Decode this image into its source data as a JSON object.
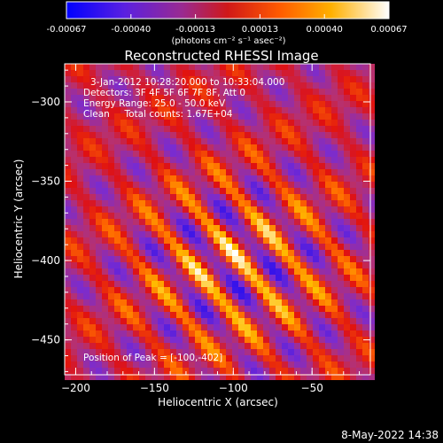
{
  "chart_data": {
    "type": "heatmap",
    "title": "Reconstructed RHESSI Image",
    "xlabel": "Heliocentric X (arcsec)",
    "ylabel": "Heliocentric Y (arcsec)",
    "xlim": [
      -207,
      -13
    ],
    "ylim": [
      -472,
      -276
    ],
    "xticks": [
      -200,
      -150,
      -100,
      -50
    ],
    "yticks": [
      -300,
      -350,
      -400,
      -450
    ],
    "colorbar": {
      "label": "(photons cm⁻² s⁻¹ asec⁻²)",
      "range": [
        -0.00067,
        0.00067
      ],
      "ticks": [
        "-0.00067",
        "-0.00040",
        "-0.00013",
        "0.00013",
        "0.00040",
        "0.00067"
      ],
      "colormap": [
        "#0000ff",
        "#7a2cd0",
        "#b8306e",
        "#e01010",
        "#ff6a00",
        "#ffc000",
        "#ffffff"
      ]
    },
    "annotations": {
      "time": "3-Jan-2012 10:28:20.000 to 10:33:04.000",
      "detectors": "Detectors: 3F 4F 5F 6F 7F 8F, Att 0",
      "energy": "Energy Range: 25.0 - 50.0 keV",
      "clean": "Clean     Total counts: 1.67E+04",
      "peak": "Position of Peak = [-100,-402]"
    },
    "peak": {
      "x": -100,
      "y": -402
    }
  },
  "timestamp": "8-May-2022 14:38"
}
